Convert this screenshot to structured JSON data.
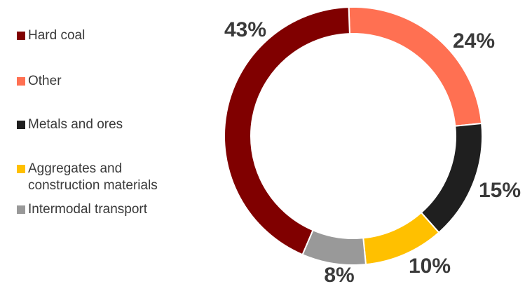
{
  "chart_data": {
    "type": "pie",
    "title": "",
    "categories": [
      "Hard coal",
      "Other",
      "Metals and ores",
      "Aggregates and construction materials",
      "Intermodal transport"
    ],
    "values": [
      43,
      24,
      15,
      10,
      8
    ],
    "unit": "%",
    "slice_order_clockwise_from_top": [
      "Other",
      "Metals and ores",
      "Aggregates and construction materials",
      "Intermodal transport",
      "Hard coal"
    ],
    "data_labels": [
      "43%",
      "24%",
      "15%",
      "10%",
      "8%"
    ],
    "colors": [
      "#800000",
      "#ff7052",
      "#1f1f1f",
      "#ffc000",
      "#999999"
    ],
    "legend": {
      "placement": "left",
      "items": [
        {
          "label": "Hard coal",
          "color": "#800000"
        },
        {
          "label": "Other",
          "color": "#ff7052"
        },
        {
          "label": "Metals and ores",
          "color": "#1f1f1f"
        },
        {
          "label": "Aggregates and\nconstruction materials",
          "color": "#ffc000"
        },
        {
          "label": "Intermodal transport",
          "color": "#999999"
        }
      ]
    }
  }
}
